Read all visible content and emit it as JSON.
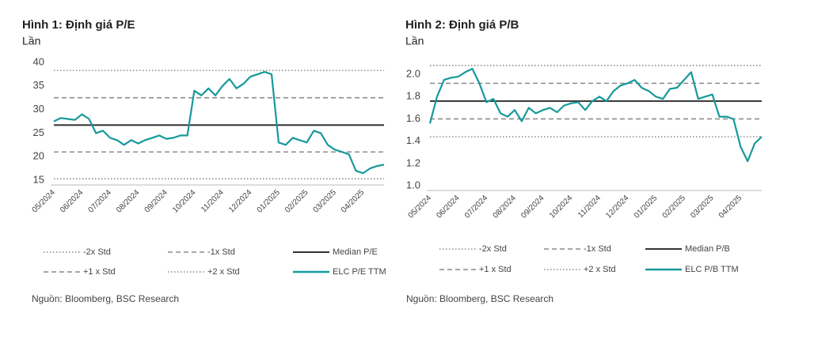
{
  "chart_data": [
    {
      "type": "line",
      "title": "Hình 1: Định giá P/E",
      "subtitle": "Lần",
      "categories": [
        "05/2024",
        null,
        null,
        null,
        "06/2024",
        null,
        null,
        null,
        "07/2024",
        null,
        null,
        null,
        "08/2024",
        null,
        null,
        null,
        "09/2024",
        null,
        null,
        null,
        "10/2024",
        null,
        null,
        null,
        "11/2024",
        null,
        null,
        null,
        "12/2024",
        null,
        null,
        null,
        "01/2025",
        null,
        null,
        null,
        "02/2025",
        null,
        null,
        null,
        "03/2025",
        null,
        null,
        null,
        "04/2025",
        null,
        null,
        null
      ],
      "series": [
        {
          "name": "ELC P/E TTM",
          "color": "#17999b",
          "values": [
            27.5,
            28.2,
            28.0,
            27.8,
            29.0,
            28.0,
            25.0,
            25.5,
            24.0,
            23.5,
            22.5,
            23.5,
            22.8,
            23.5,
            24.0,
            24.5,
            23.8,
            24.0,
            24.5,
            24.5,
            34.0,
            33.0,
            34.5,
            33.0,
            35.0,
            36.5,
            34.5,
            35.5,
            37.0,
            37.5,
            38.0,
            37.5,
            23.0,
            22.5,
            24.0,
            23.5,
            23.0,
            25.5,
            25.0,
            22.5,
            21.5,
            21.0,
            20.5,
            17.0,
            16.5,
            17.5,
            18.0,
            18.3
          ]
        }
      ],
      "reference_lines": [
        {
          "name": "-2x Std",
          "value": 15.3,
          "style": "dotted",
          "color": "#8c8c8c"
        },
        {
          "name": "-1x Std",
          "value": 21.0,
          "style": "dashed",
          "color": "#8c8c8c"
        },
        {
          "name": "Median P/E",
          "value": 26.7,
          "style": "solid",
          "color": "#333333"
        },
        {
          "name": "+1 x Std",
          "value": 32.5,
          "style": "dashed",
          "color": "#8c8c8c"
        },
        {
          "name": "+2 x Std",
          "value": 38.3,
          "style": "dotted",
          "color": "#8c8c8c"
        }
      ],
      "ylim": [
        15,
        40
      ],
      "yticks": [
        15,
        20,
        25,
        30,
        35,
        40
      ],
      "grid": false,
      "source": "Nguồn: Bloomberg, BSC Research"
    },
    {
      "type": "line",
      "title": "Hình 2: Định giá P/B",
      "subtitle": "Lần",
      "categories": [
        "05/2024",
        null,
        null,
        null,
        "06/2024",
        null,
        null,
        null,
        "07/2024",
        null,
        null,
        null,
        "08/2024",
        null,
        null,
        null,
        "09/2024",
        null,
        null,
        null,
        "10/2024",
        null,
        null,
        null,
        "11/2024",
        null,
        null,
        null,
        "12/2024",
        null,
        null,
        null,
        "01/2025",
        null,
        null,
        null,
        "02/2025",
        null,
        null,
        null,
        "03/2025",
        null,
        null,
        null,
        "04/2025",
        null,
        null,
        null
      ],
      "series": [
        {
          "name": "ELC P/B TTM",
          "color": "#17999b",
          "values": [
            1.56,
            1.8,
            1.95,
            1.97,
            1.98,
            2.02,
            2.05,
            1.92,
            1.75,
            1.78,
            1.65,
            1.62,
            1.68,
            1.58,
            1.7,
            1.65,
            1.68,
            1.7,
            1.66,
            1.72,
            1.74,
            1.75,
            1.68,
            1.76,
            1.8,
            1.76,
            1.85,
            1.9,
            1.92,
            1.95,
            1.88,
            1.85,
            1.8,
            1.78,
            1.87,
            1.88,
            1.95,
            2.02,
            1.78,
            1.8,
            1.82,
            1.62,
            1.62,
            1.6,
            1.35,
            1.22,
            1.38,
            1.44
          ]
        }
      ],
      "reference_lines": [
        {
          "name": "-2x Std",
          "value": 1.44,
          "style": "dotted",
          "color": "#8c8c8c"
        },
        {
          "name": "-1x Std",
          "value": 1.6,
          "style": "dashed",
          "color": "#8c8c8c"
        },
        {
          "name": "Median P/B",
          "value": 1.76,
          "style": "solid",
          "color": "#333333"
        },
        {
          "name": "+1 x Std",
          "value": 1.92,
          "style": "dashed",
          "color": "#8c8c8c"
        },
        {
          "name": "+2 x Std",
          "value": 2.08,
          "style": "dotted",
          "color": "#8c8c8c"
        }
      ],
      "ylim": [
        1.0,
        2.1
      ],
      "yticks": [
        {
          "value": 1.0,
          "label": "1.0"
        },
        1.2,
        1.4,
        1.6,
        1.8,
        {
          "value": 2.0,
          "label": "2.0"
        }
      ],
      "grid": false,
      "source": "Nguồn: Bloomberg, BSC Research"
    }
  ]
}
